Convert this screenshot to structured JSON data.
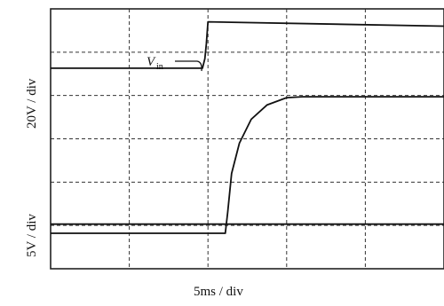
{
  "chart_data": {
    "type": "line",
    "xlabel": "5ms / div",
    "ylabel_upper": "20V / div",
    "ylabel_lower": "5V / div",
    "grid": true,
    "grid_style": "dashed",
    "x_divisions": 5,
    "y_divisions": 6,
    "series": [
      {
        "name": "V_in",
        "label_main": "V",
        "label_sub": "in",
        "x_div": [
          0,
          1.93,
          1.96,
          1.98,
          2.0,
          5.0
        ],
        "y_div": [
          4.63,
          4.63,
          4.85,
          5.2,
          5.7,
          5.6
        ]
      },
      {
        "name": "",
        "x_div": [
          0,
          2.22,
          2.25,
          2.3,
          2.4,
          2.55,
          2.75,
          3.0,
          3.2,
          5.0
        ],
        "y_div": [
          0.82,
          0.82,
          1.3,
          2.2,
          2.9,
          3.45,
          3.78,
          3.95,
          3.97,
          3.97
        ]
      },
      {
        "name": "",
        "x_div": [
          0,
          5.0
        ],
        "y_div": [
          1.03,
          1.03
        ]
      }
    ]
  }
}
